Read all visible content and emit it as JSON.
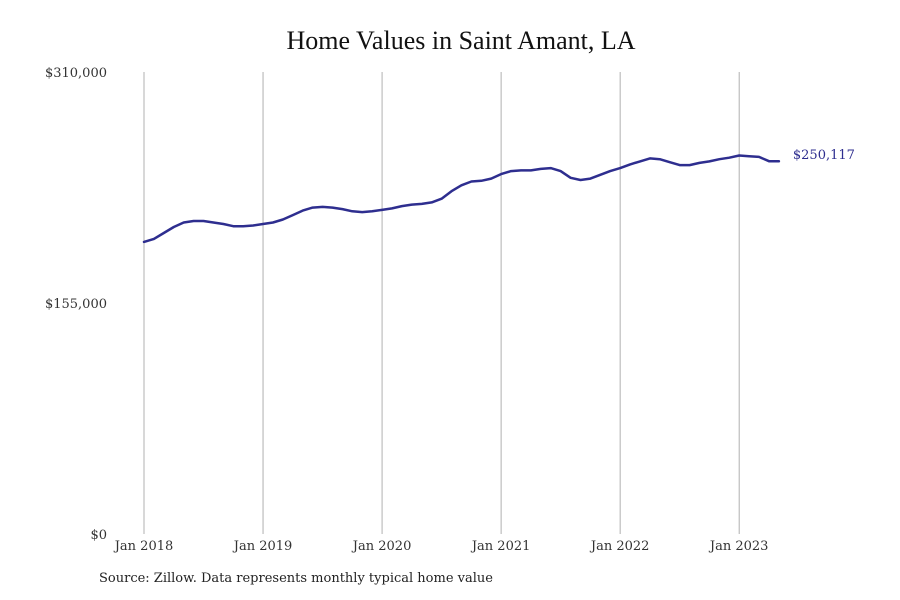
{
  "chart_data": {
    "type": "line",
    "title": "Home Values in Saint Amant, LA",
    "source": "Source: Zillow. Data represents monthly typical home value",
    "ylim": [
      0,
      310000
    ],
    "y_ticks": [
      {
        "value": 0,
        "label": "$0"
      },
      {
        "value": 155000,
        "label": "$155,000"
      },
      {
        "value": 310000,
        "label": "$310,000"
      }
    ],
    "x_range": [
      0,
      64
    ],
    "x_ticks": [
      {
        "value": 0,
        "label": "Jan 2018"
      },
      {
        "value": 12,
        "label": "Jan 2019"
      },
      {
        "value": 24,
        "label": "Jan 2020"
      },
      {
        "value": 36,
        "label": "Jan 2021"
      },
      {
        "value": 48,
        "label": "Jan 2022"
      },
      {
        "value": 60,
        "label": "Jan 2023"
      }
    ],
    "grid": "vertical",
    "line_color": "#2e2e8f",
    "grid_color": "#b0b0b0",
    "end_label": "$250,117",
    "series": [
      {
        "x": [
          0,
          1,
          2,
          3,
          4,
          5,
          6,
          7,
          8,
          9,
          10,
          11,
          12,
          13,
          14,
          15,
          16,
          17,
          18,
          19,
          20,
          21,
          22,
          23,
          24,
          25,
          26,
          27,
          28,
          29,
          30,
          31,
          32,
          33,
          34,
          35,
          36,
          37,
          38,
          39,
          40,
          41,
          42,
          43,
          44,
          45,
          46,
          47,
          48,
          49,
          50,
          51,
          52,
          53,
          54,
          55,
          56,
          57,
          58,
          59,
          60,
          61,
          62,
          63,
          64
        ],
        "values": [
          196000,
          198000,
          202000,
          206000,
          209000,
          210000,
          210000,
          209000,
          208000,
          206500,
          206500,
          207000,
          208000,
          209000,
          211000,
          214000,
          217000,
          219000,
          219500,
          219000,
          218000,
          216500,
          216000,
          216500,
          217500,
          218500,
          220000,
          221000,
          221500,
          222500,
          225000,
          230000,
          234000,
          236500,
          237000,
          238500,
          241500,
          243500,
          244000,
          244000,
          245000,
          245500,
          243500,
          239000,
          237500,
          238500,
          241000,
          243500,
          245500,
          248000,
          250000,
          252000,
          251500,
          249500,
          247500,
          247500,
          249000,
          250000,
          251500,
          252500,
          254000,
          253500,
          253000,
          250117,
          250117
        ]
      }
    ]
  }
}
